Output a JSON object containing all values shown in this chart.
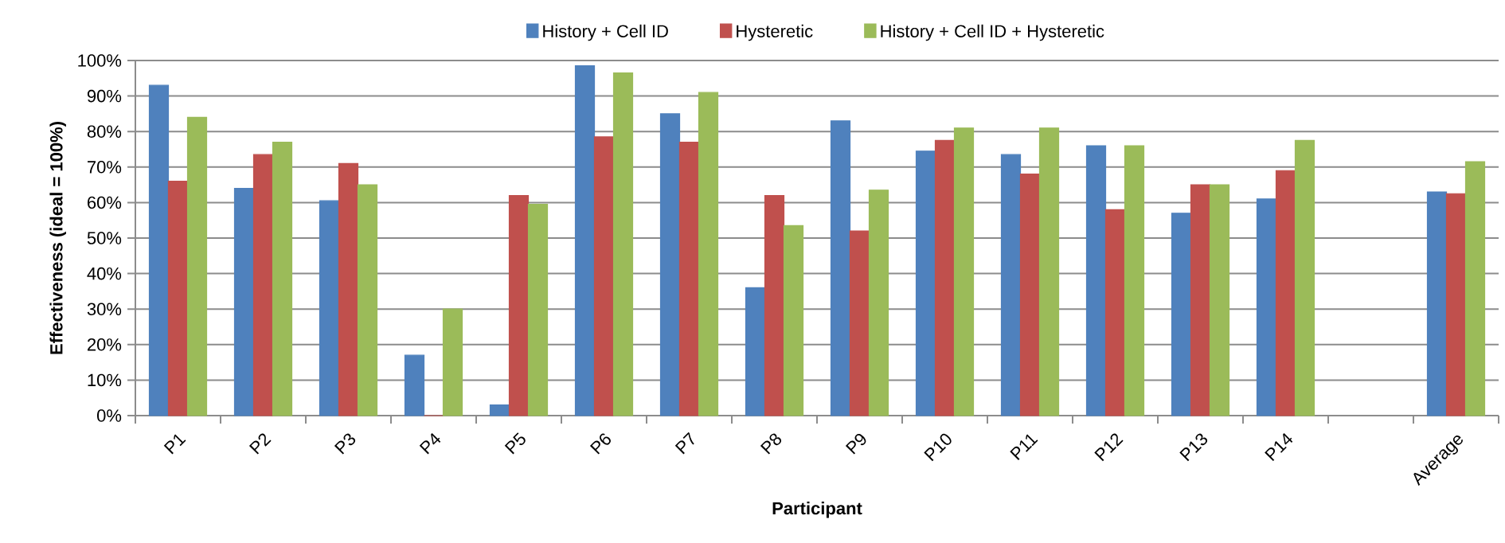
{
  "chart_data": {
    "type": "bar",
    "xlabel": "Participant",
    "ylabel": "Effectiveness (ideal = 100%)",
    "categories": [
      "P1",
      "P2",
      "P3",
      "P4",
      "P5",
      "P6",
      "P7",
      "P8",
      "P9",
      "P10",
      "P11",
      "P12",
      "P13",
      "P14",
      null,
      "Average"
    ],
    "series": [
      {
        "name": "History + Cell ID",
        "color": "#4f81bd",
        "values": [
          93,
          64,
          60.5,
          17,
          3,
          98.5,
          85,
          36,
          83,
          74.5,
          73.5,
          76,
          57,
          61,
          null,
          63
        ]
      },
      {
        "name": "Hysteretic",
        "color": "#c0504d",
        "values": [
          66,
          73.5,
          71,
          0,
          62,
          78.5,
          77,
          62,
          52,
          77.5,
          68,
          58,
          65,
          69,
          null,
          62.5
        ]
      },
      {
        "name": "History + Cell ID + Hysteretic",
        "color": "#9bbb59",
        "values": [
          84,
          77,
          65,
          30,
          59.5,
          96.5,
          91,
          53.5,
          63.5,
          81,
          81,
          76,
          65,
          77.5,
          null,
          71.5
        ]
      }
    ],
    "ylim": [
      0,
      100
    ],
    "yticks": [
      {
        "value": 0,
        "label": "0%"
      },
      {
        "value": 10,
        "label": "10%"
      },
      {
        "value": 20,
        "label": "20%"
      },
      {
        "value": 30,
        "label": "30%"
      },
      {
        "value": 40,
        "label": "40%"
      },
      {
        "value": 50,
        "label": "50%"
      },
      {
        "value": 60,
        "label": "60%"
      },
      {
        "value": 70,
        "label": "70%"
      },
      {
        "value": 80,
        "label": "80%"
      },
      {
        "value": 90,
        "label": "90%"
      },
      {
        "value": 100,
        "label": "100%"
      }
    ],
    "grid": "y",
    "legend": "top"
  }
}
